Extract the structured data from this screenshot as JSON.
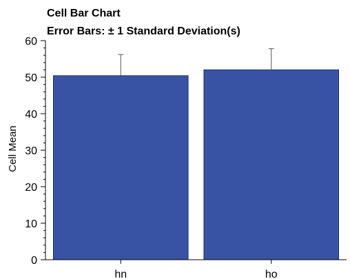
{
  "chart_data": {
    "type": "bar",
    "title": "Cell Bar Chart",
    "subtitle": "Error Bars: ± 1 Standard Deviation(s)",
    "xlabel": "",
    "ylabel": "Cell Mean",
    "categories": [
      "hn",
      "ho"
    ],
    "values": [
      50.4,
      52.0
    ],
    "error_bars": {
      "type": "± 1 standard deviation",
      "upper": [
        5.8,
        5.8
      ]
    },
    "ylim": [
      0,
      60
    ],
    "y_ticks": [
      0,
      10,
      20,
      30,
      40,
      50,
      60
    ],
    "y_minor_step": 2,
    "grid": false,
    "legend": "none",
    "colors": {
      "bar_fill": "#3853a4",
      "bar_stroke": "#1a2a66",
      "axis": "#000000",
      "error_bar": "#555555"
    }
  }
}
